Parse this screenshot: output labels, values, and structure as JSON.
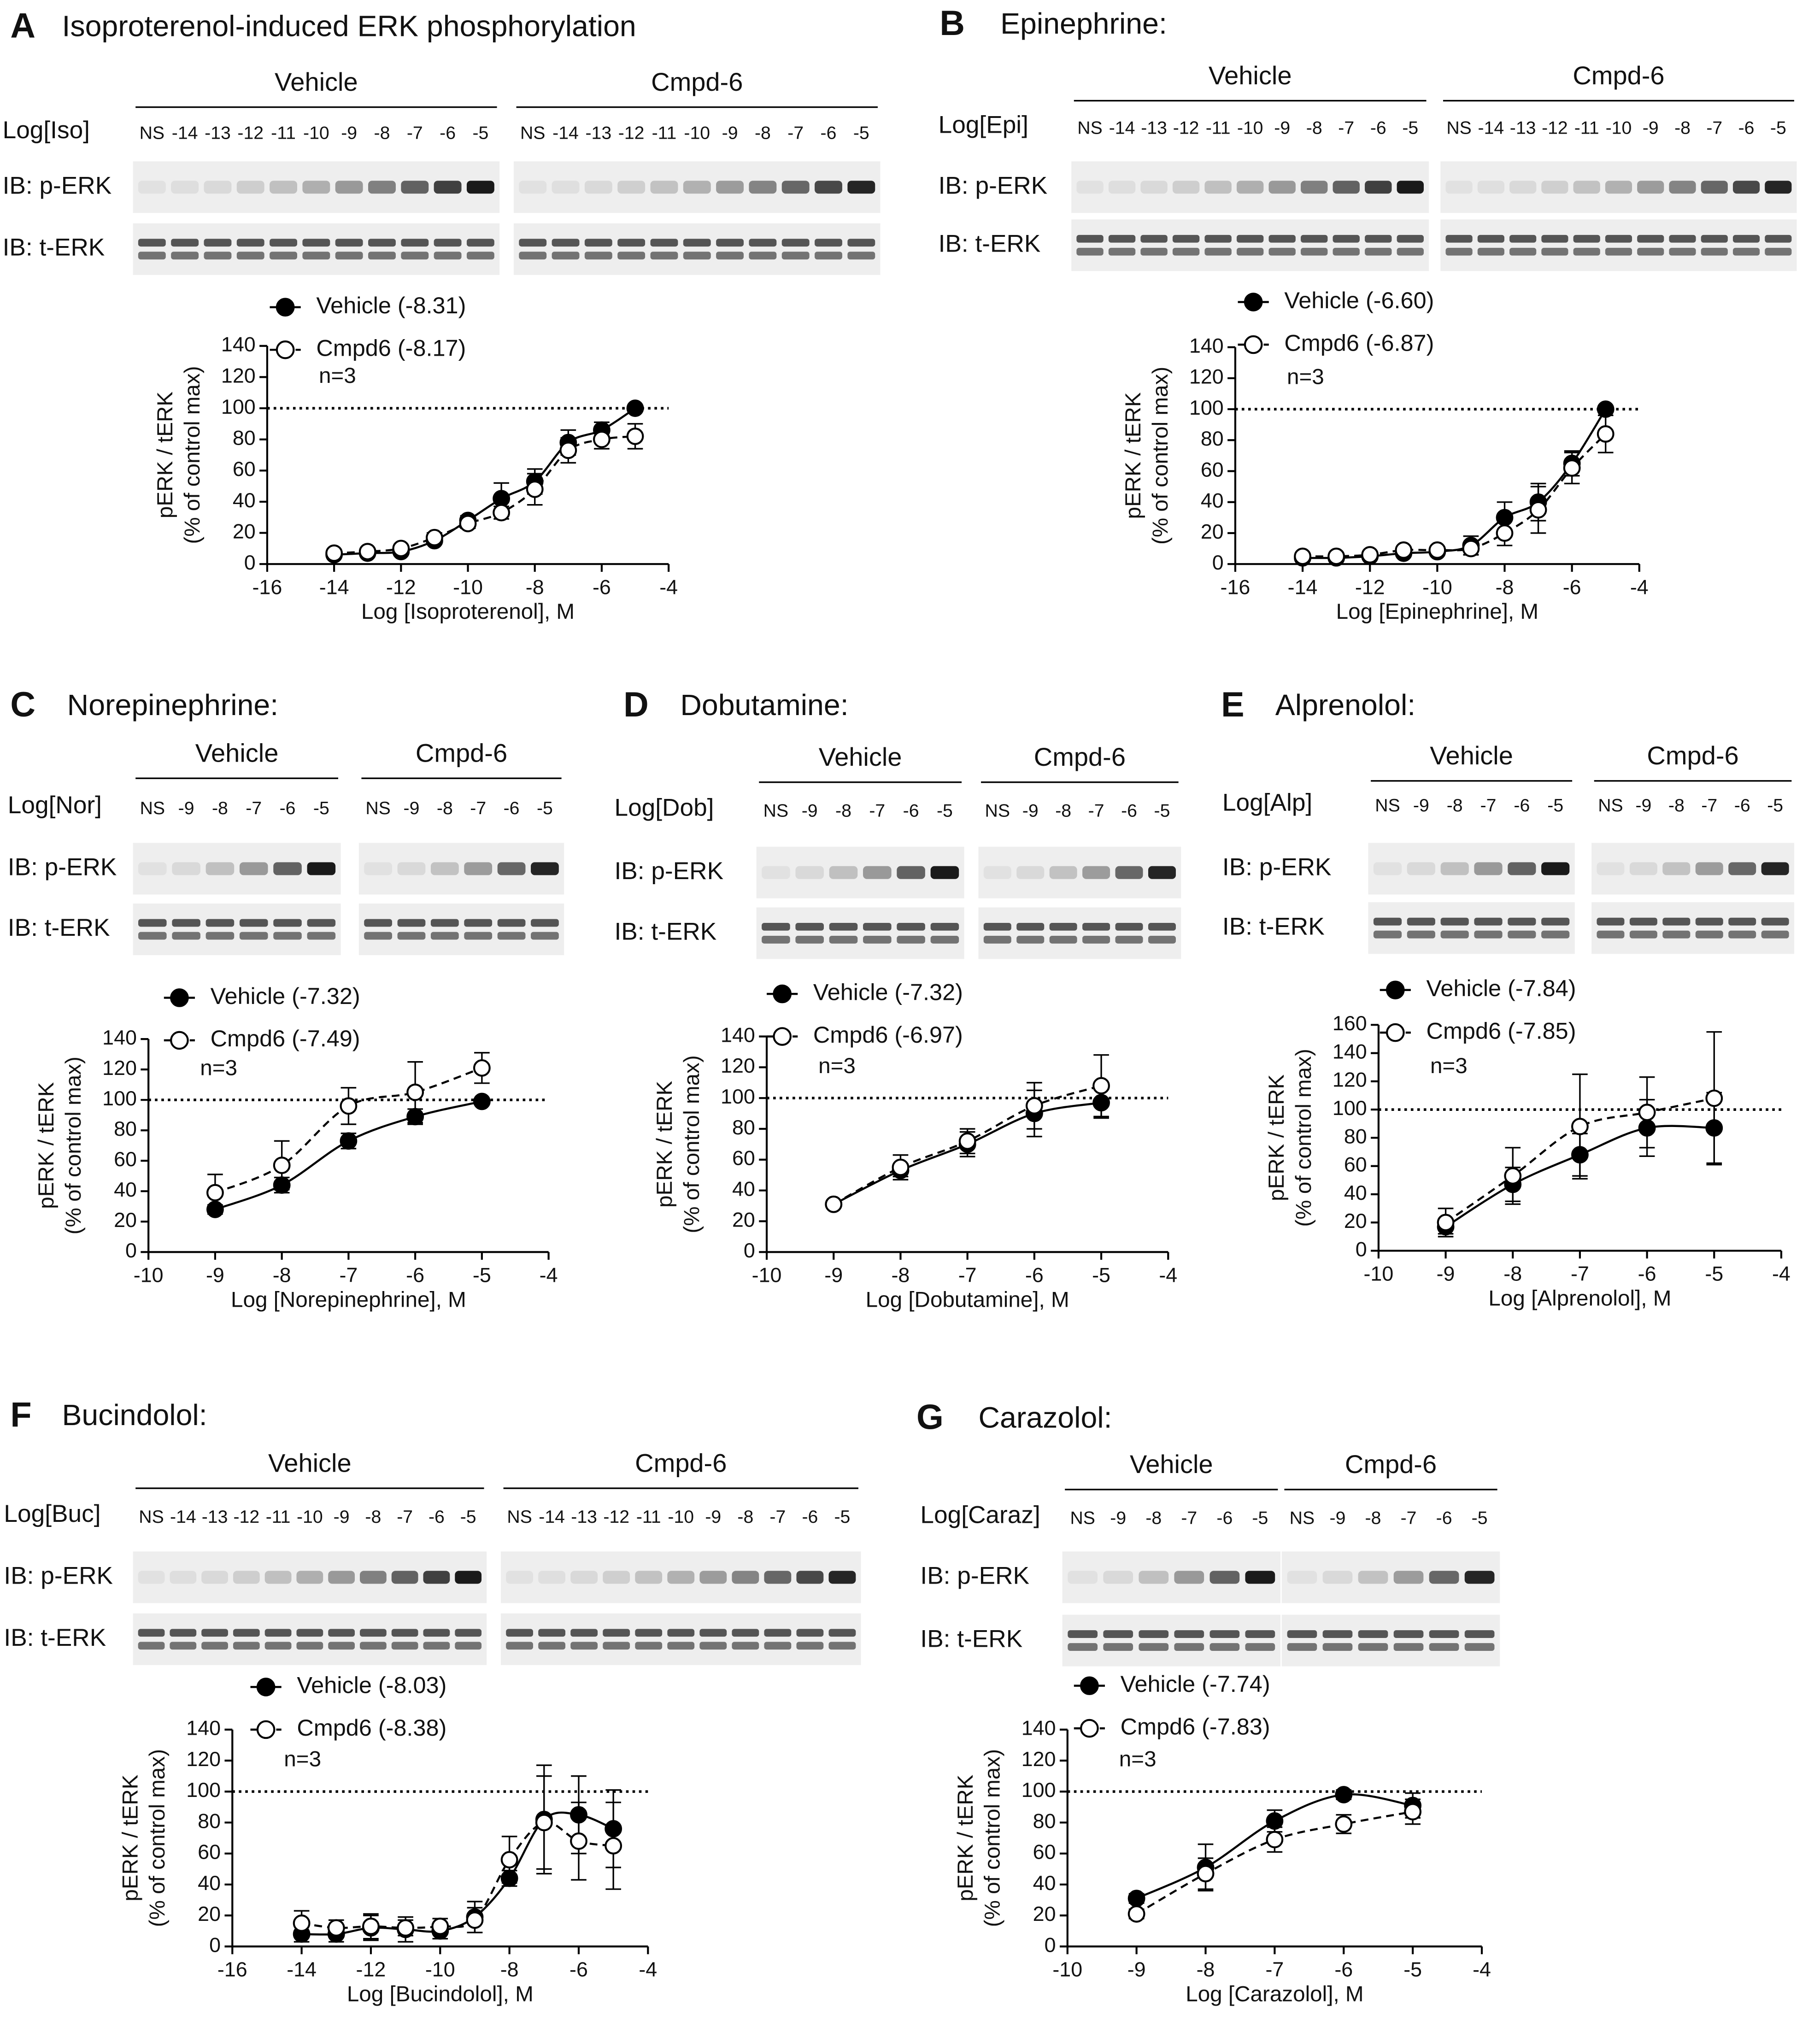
{
  "chart_data": [
    {
      "type": "line",
      "panel": "A",
      "title": "Isoproterenol-induced ERK phosphorylation",
      "groups": [
        "Vehicle",
        "Cmpd-6"
      ],
      "dose_label": "Log[Iso]",
      "lanes": [
        "NS",
        "-14",
        "-13",
        "-12",
        "-11",
        "-10",
        "-9",
        "-8",
        "-7",
        "-6",
        "-5"
      ],
      "rows": [
        "IB: p-ERK",
        "IB: t-ERK"
      ],
      "annotation": "n=3",
      "x_label": "Log [Isoproterenol], M",
      "y_label": [
        "pERK / tERK",
        "(% of control max)"
      ],
      "x": [
        -14,
        -13,
        -12,
        -11,
        -10,
        -9,
        -8,
        -7,
        -6,
        -5
      ],
      "xlim": [
        -16,
        -4
      ],
      "xticks": [
        -16,
        -14,
        -12,
        -10,
        -8,
        -6,
        -4
      ],
      "ylim": [
        0,
        140
      ],
      "yticks": [
        0,
        20,
        40,
        60,
        80,
        100,
        120,
        140
      ],
      "reference_line": 100,
      "series": [
        {
          "name": "Vehicle (-8.31)",
          "color": "#000000",
          "fill": "#000000",
          "line_style": "solid",
          "values": [
            6,
            7,
            8,
            15,
            28,
            42,
            53,
            78,
            86,
            100
          ],
          "errors": [
            2,
            2,
            2,
            2,
            3,
            10,
            8,
            8,
            5,
            2
          ]
        },
        {
          "name": "Cmpd6 (-8.17)",
          "color": "#000000",
          "fill": "#ffffff",
          "line_style": "dashed",
          "values": [
            7,
            8,
            10,
            17,
            26,
            33,
            48,
            73,
            80,
            82
          ],
          "errors": [
            2,
            2,
            2,
            3,
            3,
            4,
            10,
            8,
            6,
            8
          ]
        }
      ]
    },
    {
      "type": "line",
      "panel": "B",
      "title": "Epinephrine:",
      "groups": [
        "Vehicle",
        "Cmpd-6"
      ],
      "dose_label": "Log[Epi]",
      "lanes": [
        "NS",
        "-14",
        "-13",
        "-12",
        "-11",
        "-10",
        "-9",
        "-8",
        "-7",
        "-6",
        "-5"
      ],
      "rows": [
        "IB: p-ERK",
        "IB: t-ERK"
      ],
      "annotation": "n=3",
      "x_label": "Log [Epinephrine], M",
      "y_label": [
        "pERK / tERK",
        "(% of control max)"
      ],
      "x": [
        -14,
        -13,
        -12,
        -11,
        -10,
        -9,
        -8,
        -7,
        -6,
        -5
      ],
      "xlim": [
        -16,
        -4
      ],
      "xticks": [
        -16,
        -14,
        -12,
        -10,
        -8,
        -6,
        -4
      ],
      "ylim": [
        0,
        140
      ],
      "yticks": [
        0,
        20,
        40,
        60,
        80,
        100,
        120,
        140
      ],
      "reference_line": 100,
      "series": [
        {
          "name": "Vehicle (-6.60)",
          "color": "#000000",
          "fill": "#000000",
          "line_style": "solid",
          "values": [
            4,
            4,
            5,
            7,
            8,
            12,
            30,
            40,
            65,
            100
          ],
          "errors": [
            2,
            2,
            2,
            2,
            2,
            6,
            10,
            12,
            8,
            2
          ]
        },
        {
          "name": "Cmpd6 (-6.87)",
          "color": "#000000",
          "fill": "#ffffff",
          "line_style": "dashed",
          "values": [
            5,
            5,
            6,
            9,
            9,
            10,
            20,
            35,
            62,
            84
          ],
          "errors": [
            2,
            2,
            2,
            2,
            2,
            4,
            8,
            15,
            10,
            12
          ]
        }
      ]
    },
    {
      "type": "line",
      "panel": "C",
      "title": "Norepinephrine:",
      "groups": [
        "Vehicle",
        "Cmpd-6"
      ],
      "dose_label": "Log[Nor]",
      "lanes": [
        "NS",
        "-9",
        "-8",
        "-7",
        "-6",
        "-5"
      ],
      "rows": [
        "IB: p-ERK",
        "IB: t-ERK"
      ],
      "annotation": "n=3",
      "x_label": "Log [Norepinephrine], M",
      "y_label": [
        "pERK / tERK",
        "(% of control max)"
      ],
      "x": [
        -9,
        -8,
        -7,
        -6,
        -5
      ],
      "xlim": [
        -10,
        -4
      ],
      "xticks": [
        -10,
        -9,
        -8,
        -7,
        -6,
        -5,
        -4
      ],
      "ylim": [
        0,
        140
      ],
      "yticks": [
        0,
        20,
        40,
        60,
        80,
        100,
        120,
        140
      ],
      "reference_line": 100,
      "series": [
        {
          "name": "Vehicle (-7.32)",
          "color": "#000000",
          "fill": "#000000",
          "line_style": "solid",
          "values": [
            28,
            44,
            73,
            89,
            99
          ],
          "errors": [
            3,
            5,
            5,
            5,
            2
          ]
        },
        {
          "name": "Cmpd6 (-7.49)",
          "color": "#000000",
          "fill": "#ffffff",
          "line_style": "dashed",
          "values": [
            39,
            57,
            96,
            105,
            121
          ],
          "errors": [
            12,
            16,
            12,
            20,
            10
          ]
        }
      ]
    },
    {
      "type": "line",
      "panel": "D",
      "title": "Dobutamine:",
      "groups": [
        "Vehicle",
        "Cmpd-6"
      ],
      "dose_label": "Log[Dob]",
      "lanes": [
        "NS",
        "-9",
        "-8",
        "-7",
        "-6",
        "-5"
      ],
      "rows": [
        "IB: p-ERK",
        "IB: t-ERK"
      ],
      "annotation": "n=3",
      "x_label": "Log [Dobutamine], M",
      "y_label": [
        "pERK / tERK",
        "(% of control max)"
      ],
      "x": [
        -9,
        -8,
        -7,
        -6,
        -5
      ],
      "xlim": [
        -10,
        -4
      ],
      "xticks": [
        -10,
        -9,
        -8,
        -7,
        -6,
        -5,
        -4
      ],
      "ylim": [
        0,
        140
      ],
      "yticks": [
        0,
        20,
        40,
        60,
        80,
        100,
        120,
        140
      ],
      "reference_line": 100,
      "series": [
        {
          "name": "Vehicle (-7.32)",
          "color": "#000000",
          "fill": "#000000",
          "line_style": "solid",
          "values": [
            31,
            53,
            70,
            90,
            97
          ],
          "errors": [
            2,
            4,
            8,
            15,
            10
          ]
        },
        {
          "name": "Cmpd6 (-6.97)",
          "color": "#000000",
          "fill": "#ffffff",
          "line_style": "dashed",
          "values": [
            31,
            55,
            72,
            95,
            108
          ],
          "errors": [
            2,
            8,
            8,
            15,
            20
          ]
        }
      ]
    },
    {
      "type": "line",
      "panel": "E",
      "title": "Alprenolol:",
      "groups": [
        "Vehicle",
        "Cmpd-6"
      ],
      "dose_label": "Log[Alp]",
      "lanes": [
        "NS",
        "-9",
        "-8",
        "-7",
        "-6",
        "-5"
      ],
      "rows": [
        "IB: p-ERK",
        "IB: t-ERK"
      ],
      "annotation": "n=3",
      "x_label": "Log [Alprenolol], M",
      "y_label": [
        "pERK / tERK",
        "(% of control max)"
      ],
      "x": [
        -9,
        -8,
        -7,
        -6,
        -5
      ],
      "xlim": [
        -10,
        -4
      ],
      "xticks": [
        -10,
        -9,
        -8,
        -7,
        -6,
        -5,
        -4
      ],
      "ylim": [
        0,
        160
      ],
      "yticks": [
        0,
        20,
        40,
        60,
        80,
        100,
        120,
        140,
        160
      ],
      "reference_line": 100,
      "series": [
        {
          "name": "Vehicle (-7.84)",
          "color": "#000000",
          "fill": "#000000",
          "line_style": "solid",
          "values": [
            17,
            47,
            68,
            87,
            87
          ],
          "errors": [
            5,
            12,
            15,
            20,
            25
          ]
        },
        {
          "name": "Cmpd6 (-7.85)",
          "color": "#000000",
          "fill": "#ffffff",
          "line_style": "dashed",
          "values": [
            20,
            53,
            88,
            98,
            108
          ],
          "errors": [
            10,
            20,
            37,
            25,
            47
          ]
        }
      ]
    },
    {
      "type": "line",
      "panel": "F",
      "title": "Bucindolol:",
      "groups": [
        "Vehicle",
        "Cmpd-6"
      ],
      "dose_label": "Log[Buc]",
      "lanes": [
        "NS",
        "-14",
        "-13",
        "-12",
        "-11",
        "-10",
        "-9",
        "-8",
        "-7",
        "-6",
        "-5"
      ],
      "rows": [
        "IB: p-ERK",
        "IB: t-ERK"
      ],
      "annotation": "n=3",
      "x_label": "Log [Bucindolol], M",
      "y_label": [
        "pERK / tERK",
        "(% of control max)"
      ],
      "x": [
        -14,
        -13,
        -12,
        -11,
        -10,
        -9,
        -8,
        -7,
        -6,
        -5
      ],
      "xlim": [
        -16,
        -4
      ],
      "xticks": [
        -16,
        -14,
        -12,
        -10,
        -8,
        -6,
        -4
      ],
      "ylim": [
        0,
        140
      ],
      "yticks": [
        0,
        20,
        40,
        60,
        80,
        100,
        120,
        140
      ],
      "reference_line": 100,
      "series": [
        {
          "name": "Vehicle (-8.03)",
          "color": "#000000",
          "fill": "#000000",
          "line_style": "solid",
          "values": [
            8,
            8,
            12,
            11,
            10,
            19,
            44,
            82,
            85,
            76
          ],
          "errors": [
            5,
            5,
            8,
            8,
            5,
            10,
            5,
            35,
            25,
            25
          ]
        },
        {
          "name": "Cmpd6 (-8.38)",
          "color": "#000000",
          "fill": "#ffffff",
          "line_style": "dashed",
          "values": [
            15,
            12,
            13,
            12,
            13,
            17,
            56,
            80,
            68,
            65
          ],
          "errors": [
            8,
            5,
            8,
            5,
            5,
            8,
            15,
            30,
            25,
            28
          ]
        }
      ]
    },
    {
      "type": "line",
      "panel": "G",
      "title": "Carazolol:",
      "groups": [
        "Vehicle",
        "Cmpd-6"
      ],
      "dose_label": "Log[Caraz]",
      "lanes": [
        "NS",
        "-9",
        "-8",
        "-7",
        "-6",
        "-5"
      ],
      "rows": [
        "IB: p-ERK",
        "IB: t-ERK"
      ],
      "annotation": "n=3",
      "x_label": "Log [Carazolol], M",
      "y_label": [
        "pERK / tERK",
        "(% of control max)"
      ],
      "x": [
        -9,
        -8,
        -7,
        -6,
        -5
      ],
      "xlim": [
        -10,
        -4
      ],
      "xticks": [
        -10,
        -9,
        -8,
        -7,
        -6,
        -5,
        -4
      ],
      "ylim": [
        0,
        140
      ],
      "yticks": [
        0,
        20,
        40,
        60,
        80,
        100,
        120,
        140
      ],
      "reference_line": 100,
      "series": [
        {
          "name": "Vehicle (-7.74)",
          "color": "#000000",
          "fill": "#000000",
          "line_style": "solid",
          "values": [
            31,
            51,
            81,
            98,
            91
          ],
          "errors": [
            3,
            15,
            7,
            3,
            8
          ]
        },
        {
          "name": "Cmpd6 (-7.83)",
          "color": "#000000",
          "fill": "#ffffff",
          "line_style": "dashed",
          "values": [
            21,
            47,
            69,
            79,
            87
          ],
          "errors": [
            3,
            10,
            8,
            6,
            8
          ]
        }
      ]
    }
  ]
}
